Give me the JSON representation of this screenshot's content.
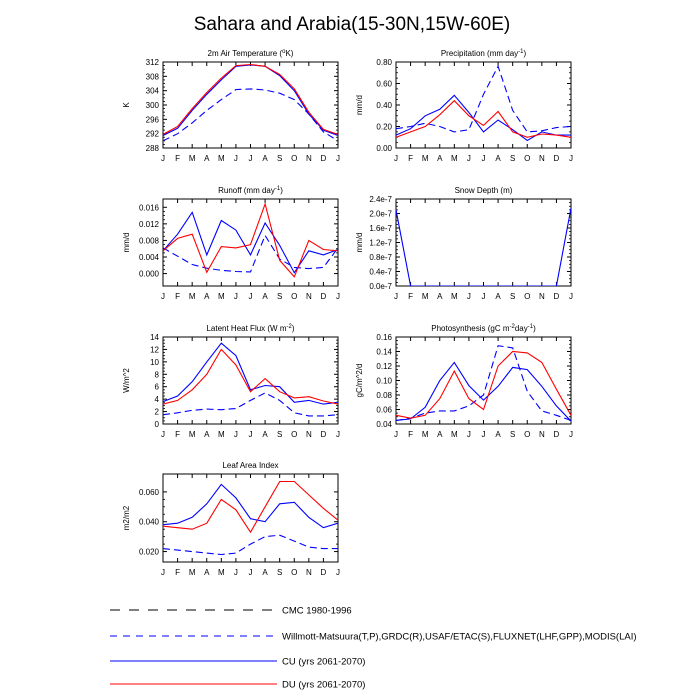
{
  "title": "Sahara and Arabia(15-30N,15W-60E)",
  "colors": {
    "cmc": "#000000",
    "obs": "#0000ff",
    "cu": "#0000ff",
    "du": "#ff0000",
    "axis": "#000000"
  },
  "months": [
    "J",
    "F",
    "M",
    "A",
    "M",
    "J",
    "J",
    "A",
    "S",
    "O",
    "N",
    "D",
    "J"
  ],
  "legend": [
    {
      "label": "CMC 1980-1996",
      "color": "#000000",
      "dash": "long"
    },
    {
      "label": "Willmott-Matsuura(T,P),GRDC(R),USAF/ETAC(S),FLUXNET(LHF,GPP),MODIS(LAI)",
      "color": "#0000ff",
      "dash": "medium"
    },
    {
      "label": "CU (yrs 2061-2070)",
      "color": "#0000ff",
      "dash": "solid"
    },
    {
      "label": "DU (yrs 2061-2070)",
      "color": "#ff0000",
      "dash": "solid"
    }
  ],
  "chart_data": [
    {
      "type": "line",
      "title": "2m Air Temperature (°K)",
      "ylabel": "K",
      "ylim": [
        288,
        312
      ],
      "yticks": [
        "288",
        "292",
        "296",
        "300",
        "304",
        "308",
        "312"
      ],
      "series": [
        {
          "name": "obs",
          "style": "dashed",
          "color": "#0000ff",
          "values": [
            290.0,
            292.0,
            295.0,
            298.5,
            301.5,
            304.3,
            304.5,
            304.2,
            303.3,
            301.5,
            297.5,
            292.5,
            290.0
          ]
        },
        {
          "name": "CU",
          "style": "solid",
          "color": "#0000ff",
          "values": [
            291.5,
            293.5,
            298.5,
            303.0,
            307.0,
            310.8,
            311.2,
            310.8,
            308.2,
            304.0,
            297.5,
            293.0,
            291.5
          ]
        },
        {
          "name": "DU",
          "style": "solid",
          "color": "#ff0000",
          "values": [
            291.8,
            294.0,
            299.0,
            303.5,
            307.5,
            311.0,
            311.3,
            310.8,
            308.5,
            304.5,
            298.0,
            293.2,
            291.8
          ]
        }
      ]
    },
    {
      "type": "line",
      "title": "Precipitation (mm day-1)",
      "ylabel": "mm/d",
      "ylim": [
        0,
        0.8
      ],
      "yticks": [
        "0.00",
        "0.20",
        "0.40",
        "0.60",
        "0.80"
      ],
      "series": [
        {
          "name": "obs",
          "style": "dashed",
          "color": "#0000ff",
          "values": [
            0.18,
            0.2,
            0.23,
            0.2,
            0.15,
            0.17,
            0.5,
            0.76,
            0.35,
            0.15,
            0.16,
            0.19,
            0.2
          ]
        },
        {
          "name": "CU",
          "style": "solid",
          "color": "#0000ff",
          "values": [
            0.12,
            0.18,
            0.3,
            0.36,
            0.49,
            0.33,
            0.15,
            0.26,
            0.17,
            0.07,
            0.15,
            0.12,
            0.12
          ]
        },
        {
          "name": "DU",
          "style": "solid",
          "color": "#ff0000",
          "values": [
            0.1,
            0.15,
            0.2,
            0.31,
            0.44,
            0.3,
            0.21,
            0.34,
            0.15,
            0.1,
            0.13,
            0.12,
            0.1
          ]
        }
      ]
    },
    {
      "type": "line",
      "title": "Runoff (mm day-1)",
      "ylabel": "mm/d",
      "ylim": [
        -0.003,
        0.018
      ],
      "yticks": [
        "0.000",
        "0.004",
        "0.008",
        "0.012",
        "0.016"
      ],
      "tickvals": [
        0,
        0.004,
        0.008,
        0.012,
        0.016
      ],
      "series": [
        {
          "name": "obs",
          "style": "dashed",
          "color": "#0000ff",
          "values": [
            0.0062,
            0.0042,
            0.0022,
            0.0013,
            0.0008,
            0.0005,
            0.0004,
            0.0092,
            0.0035,
            0.0015,
            0.0012,
            0.0015,
            0.0062
          ]
        },
        {
          "name": "CU",
          "style": "solid",
          "color": "#0000ff",
          "values": [
            0.0055,
            0.0095,
            0.0148,
            0.0045,
            0.0128,
            0.0105,
            0.0045,
            0.0122,
            0.0068,
            0.0002,
            0.0055,
            0.0045,
            0.0058
          ]
        },
        {
          "name": "DU",
          "style": "solid",
          "color": "#ff0000",
          "values": [
            0.0055,
            0.0085,
            0.0095,
            0.0003,
            0.0065,
            0.0062,
            0.007,
            0.0168,
            0.0032,
            -0.0008,
            0.008,
            0.0058,
            0.0055
          ]
        }
      ]
    },
    {
      "type": "line",
      "title": "Snow Depth (m)",
      "ylabel": "mm/d",
      "ylim": [
        0,
        2.4e-07
      ],
      "yticks": [
        "0.0e-7",
        "0.4e-7",
        "0.8e-7",
        "1.2e-7",
        "1.6e-7",
        "2.0e-7",
        "2.4e-7"
      ],
      "series": [
        {
          "name": "CU",
          "style": "solid",
          "color": "#0000ff",
          "values": [
            2.1e-07,
            0,
            0,
            0,
            0,
            0,
            0,
            0,
            0,
            0,
            0,
            0,
            2.15e-07
          ]
        }
      ]
    },
    {
      "type": "line",
      "title": "Latent Heat Flux (W m-2)",
      "ylabel": "W/m^2",
      "ylim": [
        0,
        14
      ],
      "yticks": [
        "0",
        "2",
        "4",
        "6",
        "8",
        "10",
        "12",
        "14"
      ],
      "series": [
        {
          "name": "obs",
          "style": "dashed",
          "color": "#0000ff",
          "values": [
            1.5,
            1.8,
            2.2,
            2.4,
            2.3,
            2.5,
            3.8,
            5.0,
            3.8,
            1.8,
            1.3,
            1.3,
            1.5
          ]
        },
        {
          "name": "CU",
          "style": "solid",
          "color": "#0000ff",
          "values": [
            3.6,
            4.5,
            6.8,
            10.0,
            13.0,
            11.0,
            5.5,
            6.2,
            6.0,
            3.5,
            3.8,
            3.2,
            3.5
          ]
        },
        {
          "name": "DU",
          "style": "solid",
          "color": "#ff0000",
          "values": [
            3.2,
            3.8,
            5.5,
            8.0,
            12.0,
            9.5,
            5.2,
            7.3,
            5.2,
            4.2,
            4.4,
            3.7,
            3.2
          ]
        }
      ]
    },
    {
      "type": "line",
      "title": "Photosynthesis (gC m-2day-1)",
      "ylabel": "gC/m^2/d",
      "ylim": [
        0.04,
        0.16
      ],
      "yticks": [
        "0.04",
        "0.06",
        "0.08",
        "0.10",
        "0.12",
        "0.14",
        "0.16"
      ],
      "series": [
        {
          "name": "obs",
          "style": "dashed",
          "color": "#0000ff",
          "values": [
            0.045,
            0.048,
            0.055,
            0.058,
            0.058,
            0.065,
            0.08,
            0.148,
            0.145,
            0.085,
            0.058,
            0.052,
            0.045
          ]
        },
        {
          "name": "CU",
          "style": "solid",
          "color": "#0000ff",
          "values": [
            0.045,
            0.047,
            0.063,
            0.1,
            0.125,
            0.093,
            0.073,
            0.092,
            0.118,
            0.115,
            0.092,
            0.065,
            0.044
          ]
        },
        {
          "name": "DU",
          "style": "solid",
          "color": "#ff0000",
          "values": [
            0.052,
            0.048,
            0.052,
            0.075,
            0.113,
            0.075,
            0.06,
            0.12,
            0.14,
            0.138,
            0.125,
            0.088,
            0.052
          ]
        }
      ]
    },
    {
      "type": "line",
      "title": "Leaf Area Index",
      "ylabel": "m2/m2",
      "ylim": [
        0.013,
        0.072
      ],
      "yticks": [
        "0.020",
        "0.040",
        "0.060"
      ],
      "tickvals": [
        0.02,
        0.04,
        0.06
      ],
      "series": [
        {
          "name": "obs",
          "style": "dashed",
          "color": "#0000ff",
          "values": [
            0.022,
            0.021,
            0.02,
            0.019,
            0.018,
            0.019,
            0.025,
            0.03,
            0.031,
            0.027,
            0.023,
            0.022,
            0.022
          ]
        },
        {
          "name": "CU",
          "style": "solid",
          "color": "#0000ff",
          "values": [
            0.038,
            0.039,
            0.043,
            0.052,
            0.065,
            0.056,
            0.042,
            0.04,
            0.052,
            0.053,
            0.043,
            0.036,
            0.039
          ]
        },
        {
          "name": "DU",
          "style": "solid",
          "color": "#ff0000",
          "values": [
            0.037,
            0.036,
            0.035,
            0.039,
            0.055,
            0.048,
            0.033,
            0.05,
            0.067,
            0.067,
            0.058,
            0.049,
            0.041
          ]
        }
      ]
    }
  ]
}
